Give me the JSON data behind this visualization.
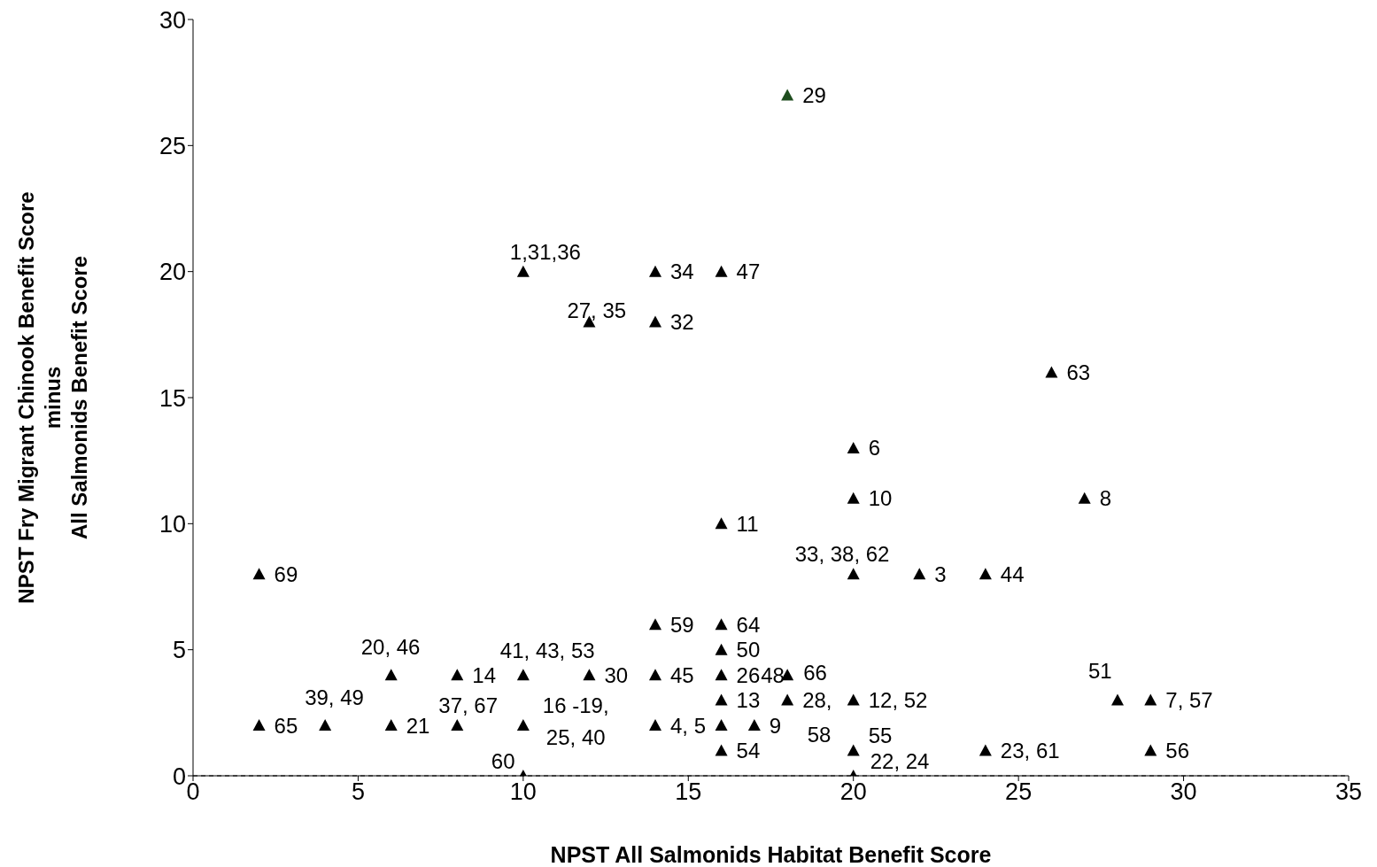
{
  "chart_data": {
    "type": "scatter",
    "xlabel": "NPST All Salmonids Habitat Benefit Score",
    "ylabel": "NPST Fry Migrant Chinook Benefit Score\nminus\nAll Salmonids Benefit Score",
    "x": [
      2,
      18,
      10,
      14,
      16,
      12,
      14,
      26,
      20,
      20,
      27,
      16,
      20,
      22,
      24,
      14,
      16,
      16,
      6,
      8,
      10,
      12,
      14,
      16,
      18,
      4,
      2,
      6,
      8,
      10,
      14,
      16,
      16,
      17,
      18,
      20,
      16,
      20,
      20,
      10,
      24,
      28,
      29,
      29
    ],
    "values": [
      8,
      27,
      20,
      20,
      20,
      18,
      18,
      16,
      13,
      11,
      11,
      10,
      8,
      8,
      8,
      6,
      6,
      5,
      4,
      4,
      4,
      4,
      4,
      4,
      4,
      2,
      2,
      2,
      2,
      2,
      2,
      3,
      2,
      2,
      3,
      3,
      1,
      1,
      0,
      0,
      1,
      3,
      3,
      1
    ],
    "colors": [
      "#000000",
      "#1e4d1e",
      "#000000",
      "#000000",
      "#000000",
      "#000000",
      "#000000",
      "#000000",
      "#000000",
      "#000000",
      "#000000",
      "#000000",
      "#000000",
      "#000000",
      "#000000",
      "#000000",
      "#000000",
      "#000000",
      "#000000",
      "#000000",
      "#000000",
      "#000000",
      "#000000",
      "#000000",
      "#000000",
      "#000000",
      "#000000",
      "#000000",
      "#000000",
      "#000000",
      "#000000",
      "#000000",
      "#000000",
      "#000000",
      "#000000",
      "#000000",
      "#000000",
      "#000000",
      "#000000",
      "#000000",
      "#000000",
      "#000000",
      "#000000",
      "#000000"
    ],
    "marker": "triangle",
    "grid": false,
    "xlim": [
      0,
      35
    ],
    "xticks": [
      0,
      5,
      10,
      15,
      20,
      25,
      30,
      35
    ],
    "ylim": [
      0,
      30
    ],
    "yticks": [
      0,
      5,
      10,
      15,
      20,
      25,
      30
    ],
    "ref_lines": [
      {
        "axis": "y",
        "value": 0,
        "line_style": "dashed",
        "color": "#000000"
      }
    ],
    "annotations": [
      {
        "text": "69",
        "x": 2,
        "y": 8
      },
      {
        "text": "29",
        "x": 18,
        "y": 27
      },
      {
        "text": "1,31,36",
        "x": 10,
        "y": 20
      },
      {
        "text": "34",
        "x": 14,
        "y": 20
      },
      {
        "text": "47",
        "x": 16,
        "y": 20
      },
      {
        "text": "27, 35",
        "x": 12,
        "y": 18
      },
      {
        "text": "32",
        "x": 14,
        "y": 18
      },
      {
        "text": "63",
        "x": 26,
        "y": 16
      },
      {
        "text": "6",
        "x": 20,
        "y": 13
      },
      {
        "text": "10",
        "x": 20,
        "y": 11
      },
      {
        "text": "8",
        "x": 27,
        "y": 11
      },
      {
        "text": "11",
        "x": 16,
        "y": 10
      },
      {
        "text": "33, 38, 62",
        "x": 20,
        "y": 8
      },
      {
        "text": "3",
        "x": 22,
        "y": 8
      },
      {
        "text": "44",
        "x": 24,
        "y": 8
      },
      {
        "text": "59",
        "x": 14,
        "y": 6
      },
      {
        "text": "64",
        "x": 16,
        "y": 6
      },
      {
        "text": "50",
        "x": 16,
        "y": 5
      },
      {
        "text": "20, 46",
        "x": 6,
        "y": 4
      },
      {
        "text": "14",
        "x": 8,
        "y": 4
      },
      {
        "text": "41, 43, 53",
        "x": 10,
        "y": 4
      },
      {
        "text": "30",
        "x": 12,
        "y": 4
      },
      {
        "text": "45",
        "x": 14,
        "y": 4
      },
      {
        "text": "26",
        "x": 16,
        "y": 4
      },
      {
        "text": "48",
        "x": 18,
        "y": 4
      },
      {
        "text": "66",
        "x": 18,
        "y": 4
      },
      {
        "text": "39, 49",
        "x": 4,
        "y": 2
      },
      {
        "text": "65",
        "x": 2,
        "y": 2
      },
      {
        "text": "21",
        "x": 6,
        "y": 2
      },
      {
        "text": "37, 67",
        "x": 8,
        "y": 2
      },
      {
        "text": "16 -19,",
        "x": 10,
        "y": 2
      },
      {
        "text": "25, 40",
        "x": 10,
        "y": 2
      },
      {
        "text": "4, 5",
        "x": 14,
        "y": 2
      },
      {
        "text": "13",
        "x": 16,
        "y": 3
      },
      {
        "text": "9",
        "x": 17,
        "y": 2
      },
      {
        "text": "28,",
        "x": 18,
        "y": 3
      },
      {
        "text": "12, 52",
        "x": 20,
        "y": 3
      },
      {
        "text": "58",
        "x": 20,
        "y": 1
      },
      {
        "text": "55",
        "x": 20,
        "y": 1
      },
      {
        "text": "54",
        "x": 16,
        "y": 1
      },
      {
        "text": "22, 24",
        "x": 20,
        "y": 0
      },
      {
        "text": "60",
        "x": 10,
        "y": 0
      },
      {
        "text": "23, 61",
        "x": 24,
        "y": 1
      },
      {
        "text": "51",
        "x": 28,
        "y": 3
      },
      {
        "text": "7, 57",
        "x": 29,
        "y": 3
      },
      {
        "text": "56",
        "x": 29,
        "y": 1
      }
    ]
  }
}
